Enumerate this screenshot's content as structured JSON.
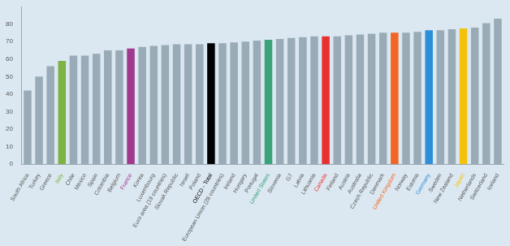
{
  "chart_data": {
    "type": "bar",
    "categories": [
      "South Africa",
      "Turkey",
      "Greece",
      "Italy",
      "Chile",
      "Mexico",
      "Spain",
      "Colombia",
      "Belgium",
      "France",
      "Korea",
      "Luxembourg",
      "Euro area (19 countries)",
      "Slovak Republic",
      "Israel",
      "Poland",
      "OECD - Total",
      "European Union (28 countries)",
      "Ireland",
      "Hungary",
      "Portugal",
      "United States",
      "Slovenia",
      "G7",
      "Latvia",
      "Lithuania",
      "Canada",
      "Finland",
      "Austria",
      "Australia",
      "Czech Republic",
      "Denmark",
      "United Kingdom",
      "Norway",
      "Estonia",
      "Germany",
      "Sweden",
      "New Zealand",
      "Japan",
      "Netherlands",
      "Switzerland",
      "Iceland"
    ],
    "values": [
      42,
      50,
      56,
      59,
      62,
      62,
      63,
      65,
      65,
      66,
      67,
      67.5,
      68,
      68.5,
      68.5,
      68.5,
      69,
      69,
      69.5,
      70,
      70.5,
      71,
      71.5,
      72,
      72.5,
      73,
      73,
      73,
      73.5,
      74,
      74.5,
      75,
      75,
      75,
      75.5,
      76.5,
      76.5,
      77,
      77.5,
      78,
      80.5,
      83
    ],
    "color": "#9aabb8",
    "colors": [
      "#9aabb8",
      "#9aabb8",
      "#9aabb8",
      "#7cb342",
      "#9aabb8",
      "#9aabb8",
      "#9aabb8",
      "#9aabb8",
      "#9aabb8",
      "#a03a8f",
      "#9aabb8",
      "#9aabb8",
      "#9aabb8",
      "#9aabb8",
      "#9aabb8",
      "#9aabb8",
      "#000000",
      "#9aabb8",
      "#9aabb8",
      "#9aabb8",
      "#9aabb8",
      "#3aa37a",
      "#9aabb8",
      "#9aabb8",
      "#9aabb8",
      "#9aabb8",
      "#e8312f",
      "#9aabb8",
      "#9aabb8",
      "#9aabb8",
      "#9aabb8",
      "#9aabb8",
      "#f26522",
      "#9aabb8",
      "#9aabb8",
      "#2e8fd8",
      "#9aabb8",
      "#9aabb8",
      "#f4c20d",
      "#9aabb8",
      "#9aabb8",
      "#9aabb8"
    ],
    "ylim": [
      0,
      90
    ],
    "yticks": [
      0,
      10,
      20,
      30,
      40,
      50,
      60,
      70,
      80
    ],
    "grid": false
  }
}
